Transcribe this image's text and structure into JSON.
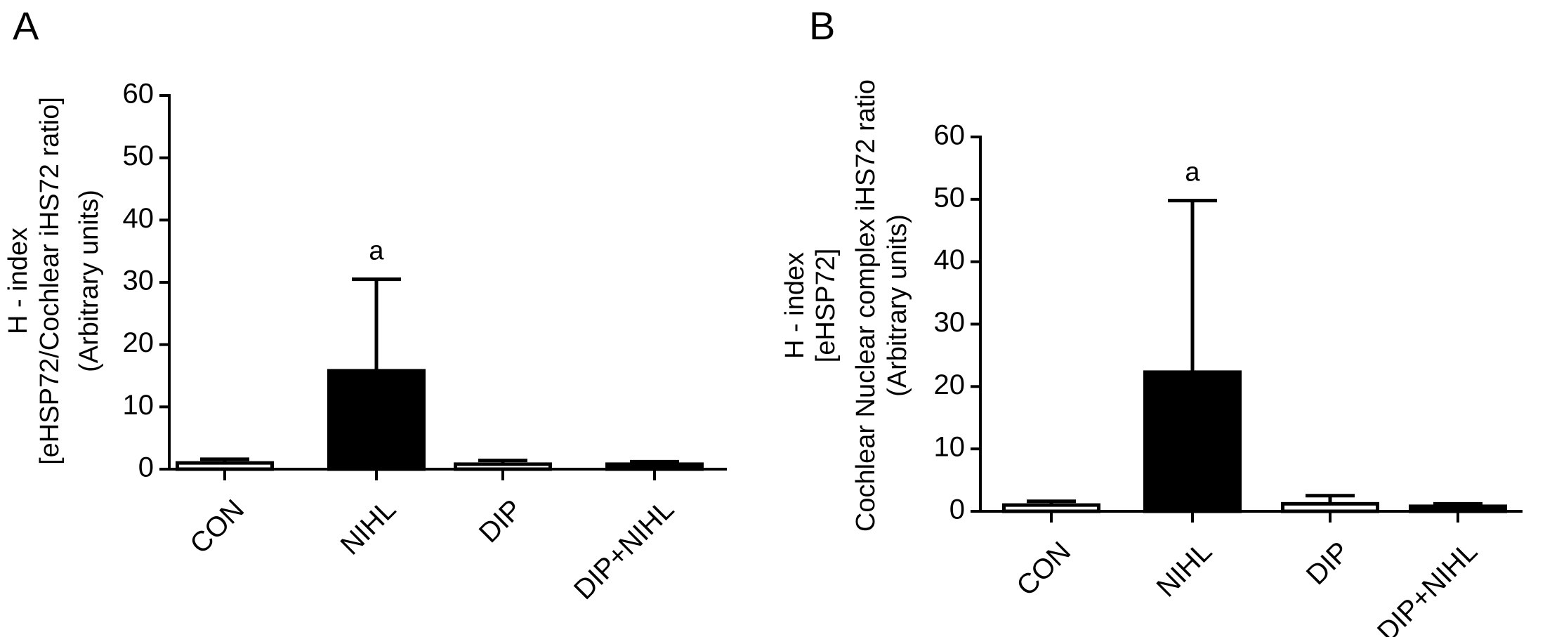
{
  "chart_data": [
    {
      "type": "bar",
      "panel": "A",
      "ylabel": [
        "H - index",
        "[eHSP72/Cochlear iHS72 ratio]",
        "(Arbitrary units)"
      ],
      "categories": [
        "CON",
        "NIHL",
        "DIP",
        "DIP+NIHL"
      ],
      "values": [
        1.0,
        15.8,
        0.8,
        0.8
      ],
      "errors": [
        0.6,
        14.7,
        0.6,
        0.4
      ],
      "bar_labels": [
        null,
        "a",
        null,
        null
      ],
      "colors": [
        "#ffffff",
        "#000000",
        "#ffffff",
        "#000000"
      ],
      "edgecolor": "#000000",
      "ylim": [
        0,
        60
      ],
      "yticks": [
        0,
        10,
        20,
        30,
        40,
        50,
        60
      ]
    },
    {
      "type": "bar",
      "panel": "B",
      "ylabel": [
        "H - index",
        "[eHSP72]",
        "Cochlear Nuclear complex iHS72 ratio",
        "(Arbitrary units)"
      ],
      "categories": [
        "CON",
        "NIHL",
        "DIP",
        "DIP+NIHL"
      ],
      "values": [
        1.0,
        22.3,
        1.2,
        0.8
      ],
      "errors": [
        0.6,
        27.5,
        1.3,
        0.4
      ],
      "bar_labels": [
        null,
        "a",
        null,
        null
      ],
      "colors": [
        "#ffffff",
        "#000000",
        "#ffffff",
        "#000000"
      ],
      "edgecolor": "#000000",
      "ylim": [
        0,
        60
      ],
      "yticks": [
        0,
        10,
        20,
        30,
        40,
        50,
        60
      ]
    }
  ]
}
